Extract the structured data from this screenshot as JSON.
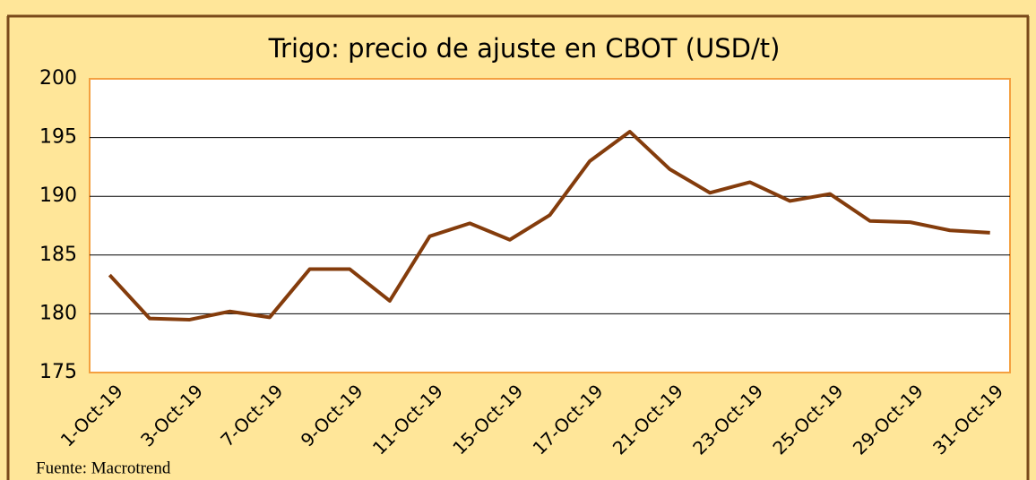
{
  "chart_data": {
    "type": "line",
    "title": "Trigo: precio de ajuste en CBOT (USD/t)",
    "source": "Fuente: Macrotrend",
    "categories": [
      "1-Oct-19",
      null,
      "3-Oct-19",
      null,
      "7-Oct-19",
      null,
      "9-Oct-19",
      null,
      "11-Oct-19",
      null,
      "15-Oct-19",
      null,
      "17-Oct-19",
      null,
      "21-Oct-19",
      null,
      "23-Oct-19",
      null,
      "25-Oct-19",
      null,
      "29-Oct-19",
      null,
      "31-Oct-19"
    ],
    "values": [
      183.3,
      179.6,
      179.5,
      180.2,
      179.7,
      183.8,
      183.8,
      181.1,
      186.6,
      187.7,
      186.3,
      188.4,
      193.0,
      195.5,
      192.3,
      190.3,
      191.2,
      189.6,
      190.2,
      187.9,
      187.8,
      187.1,
      186.9
    ],
    "color": "#843c0c",
    "ylim": [
      175,
      200
    ],
    "yticks": [
      175,
      180,
      185,
      190,
      195,
      200
    ],
    "grid": true
  }
}
